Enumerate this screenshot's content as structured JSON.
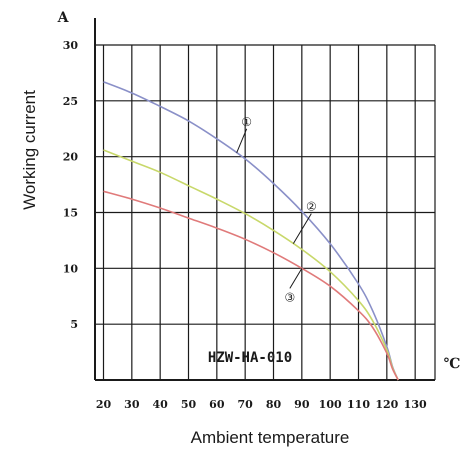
{
  "chart_data": {
    "type": "line",
    "xlabel": "Ambient temperature",
    "ylabel": "Working current",
    "x_unit": "℃",
    "y_unit": "A",
    "xlim": [
      17,
      137
    ],
    "ylim": [
      0,
      30
    ],
    "x_ticks": [
      20,
      30,
      40,
      50,
      60,
      70,
      80,
      90,
      100,
      110,
      120,
      130
    ],
    "y_ticks": [
      5,
      10,
      15,
      20,
      25,
      30
    ],
    "grid": true,
    "annotation": "HZW-HA-010",
    "series": [
      {
        "name": "①",
        "color": "#8a90c8",
        "x": [
          20,
          30,
          40,
          50,
          60,
          70,
          80,
          90,
          100,
          110,
          115,
          120,
          122,
          124
        ],
        "y": [
          26.7,
          25.7,
          24.5,
          23.2,
          21.6,
          19.8,
          17.6,
          15.1,
          12.2,
          8.6,
          6.2,
          3.0,
          1.2,
          0.0
        ]
      },
      {
        "name": "②",
        "color": "#c8d86a",
        "x": [
          20,
          30,
          40,
          50,
          60,
          70,
          80,
          90,
          100,
          110,
          115,
          120,
          122,
          124
        ],
        "y": [
          20.6,
          19.6,
          18.6,
          17.4,
          16.2,
          14.9,
          13.4,
          11.7,
          9.7,
          7.1,
          5.3,
          2.7,
          1.1,
          0.0
        ]
      },
      {
        "name": "③",
        "color": "#e07a7a",
        "x": [
          20,
          30,
          40,
          50,
          60,
          70,
          80,
          90,
          100,
          110,
          115,
          120,
          122,
          124
        ],
        "y": [
          16.9,
          16.2,
          15.4,
          14.5,
          13.6,
          12.6,
          11.4,
          10.0,
          8.4,
          6.2,
          4.7,
          2.4,
          1.0,
          0.0
        ]
      }
    ],
    "markers": [
      {
        "label": "①",
        "series": 0,
        "at_x": 67
      },
      {
        "label": "②",
        "series": 1,
        "at_x": 87
      },
      {
        "label": "③",
        "series": 2,
        "at_x": 90
      }
    ]
  }
}
